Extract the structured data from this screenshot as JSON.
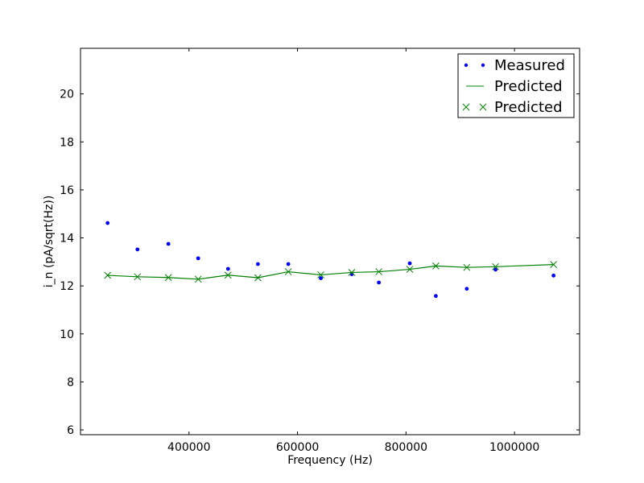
{
  "chart_data": {
    "type": "line",
    "title": "",
    "xlabel": "Frequency (Hz)",
    "ylabel": "i_n (pA/sqrt(Hz))",
    "xlim": [
      200000,
      1120000
    ],
    "ylim": [
      5.8,
      21.9
    ],
    "xticks": [
      {
        "value": 400000,
        "label": "400000"
      },
      {
        "value": 600000,
        "label": "600000"
      },
      {
        "value": 800000,
        "label": "800000"
      },
      {
        "value": 1000000,
        "label": "1000000"
      }
    ],
    "yticks": [
      {
        "value": 6,
        "label": "6"
      },
      {
        "value": 8,
        "label": "8"
      },
      {
        "value": 10,
        "label": "10"
      },
      {
        "value": 12,
        "label": "12"
      },
      {
        "value": 14,
        "label": "14"
      },
      {
        "value": 16,
        "label": "16"
      },
      {
        "value": 18,
        "label": "18"
      },
      {
        "value": 20,
        "label": "20"
      }
    ],
    "grid": false,
    "legend_position": "top-right",
    "series": [
      {
        "name": "Measured",
        "style": "dots",
        "color": "#0000ff",
        "points": [
          [
            250000,
            14.62
          ],
          [
            305000,
            13.52
          ],
          [
            362000,
            13.75
          ],
          [
            417000,
            13.15
          ],
          [
            472000,
            12.71
          ],
          [
            527000,
            12.91
          ],
          [
            583000,
            12.91
          ],
          [
            643000,
            12.32
          ],
          [
            700000,
            12.49
          ],
          [
            750000,
            12.14
          ],
          [
            807000,
            12.94
          ],
          [
            855000,
            11.58
          ],
          [
            912000,
            11.88
          ],
          [
            965000,
            12.68
          ],
          [
            1072000,
            12.43
          ]
        ]
      },
      {
        "name": "Predicted",
        "style": "line",
        "color": "#008000",
        "points": [
          [
            250000,
            12.44
          ],
          [
            305000,
            12.38
          ],
          [
            362000,
            12.35
          ],
          [
            417000,
            12.28
          ],
          [
            472000,
            12.45
          ],
          [
            527000,
            12.34
          ],
          [
            583000,
            12.59
          ],
          [
            643000,
            12.46
          ],
          [
            700000,
            12.56
          ],
          [
            750000,
            12.59
          ],
          [
            807000,
            12.69
          ],
          [
            855000,
            12.83
          ],
          [
            912000,
            12.77
          ],
          [
            965000,
            12.8
          ],
          [
            1072000,
            12.89
          ]
        ]
      },
      {
        "name": "Predicted",
        "style": "x-markers",
        "color": "#008000",
        "points": [
          [
            250000,
            12.44
          ],
          [
            305000,
            12.38
          ],
          [
            362000,
            12.35
          ],
          [
            417000,
            12.28
          ],
          [
            472000,
            12.45
          ],
          [
            527000,
            12.34
          ],
          [
            583000,
            12.59
          ],
          [
            643000,
            12.46
          ],
          [
            700000,
            12.56
          ],
          [
            750000,
            12.59
          ],
          [
            807000,
            12.69
          ],
          [
            855000,
            12.83
          ],
          [
            912000,
            12.77
          ],
          [
            965000,
            12.8
          ],
          [
            1072000,
            12.89
          ]
        ]
      }
    ]
  }
}
